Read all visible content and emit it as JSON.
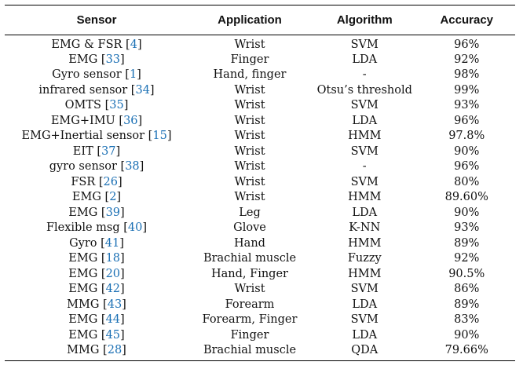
{
  "table": {
    "headers": [
      "Sensor",
      "Application",
      "Algorithm",
      "Accuracy"
    ],
    "rows": [
      {
        "sensor": "EMG & FSR",
        "ref": "4",
        "application": "Wrist",
        "algorithm": "SVM",
        "accuracy": "96%"
      },
      {
        "sensor": "EMG",
        "ref": "33",
        "application": "Finger",
        "algorithm": "LDA",
        "accuracy": "92%"
      },
      {
        "sensor": "Gyro sensor",
        "ref": "1",
        "application": "Hand, finger",
        "algorithm": "-",
        "accuracy": "98%"
      },
      {
        "sensor": "infrared sensor",
        "ref": "34",
        "application": "Wrist",
        "algorithm": "Otsu’s threshold",
        "accuracy": "99%"
      },
      {
        "sensor": "OMTS",
        "ref": "35",
        "application": "Wrist",
        "algorithm": "SVM",
        "accuracy": "93%"
      },
      {
        "sensor": "EMG+IMU",
        "ref": "36",
        "application": "Wrist",
        "algorithm": "LDA",
        "accuracy": "96%"
      },
      {
        "sensor": "EMG+Inertial sensor",
        "ref": "15",
        "application": "Wrist",
        "algorithm": "HMM",
        "accuracy": "97.8%"
      },
      {
        "sensor": "EIT",
        "ref": "37",
        "application": "Wrist",
        "algorithm": "SVM",
        "accuracy": "90%"
      },
      {
        "sensor": "gyro sensor",
        "ref": "38",
        "application": "Wrist",
        "algorithm": "-",
        "accuracy": "96%"
      },
      {
        "sensor": "FSR",
        "ref": "26",
        "application": "Wrist",
        "algorithm": "SVM",
        "accuracy": "80%"
      },
      {
        "sensor": "EMG",
        "ref": "2",
        "application": "Wrist",
        "algorithm": "HMM",
        "accuracy": "89.60%"
      },
      {
        "sensor": "EMG",
        "ref": "39",
        "application": "Leg",
        "algorithm": "LDA",
        "accuracy": "90%"
      },
      {
        "sensor": "Flexible msg",
        "ref": "40",
        "application": "Glove",
        "algorithm": "K-NN",
        "accuracy": "93%"
      },
      {
        "sensor": "Gyro",
        "ref": "41",
        "application": "Hand",
        "algorithm": "HMM",
        "accuracy": "89%"
      },
      {
        "sensor": "EMG",
        "ref": "18",
        "application": "Brachial muscle",
        "algorithm": "Fuzzy",
        "accuracy": "92%"
      },
      {
        "sensor": "EMG",
        "ref": "20",
        "application": "Hand, Finger",
        "algorithm": "HMM",
        "accuracy": "90.5%"
      },
      {
        "sensor": "EMG",
        "ref": "42",
        "application": "Wrist",
        "algorithm": "SVM",
        "accuracy": "86%"
      },
      {
        "sensor": "MMG",
        "ref": "43",
        "application": "Forearm",
        "algorithm": "LDA",
        "accuracy": "89%"
      },
      {
        "sensor": "EMG",
        "ref": "44",
        "application": "Forearm, Finger",
        "algorithm": "SVM",
        "accuracy": "83%"
      },
      {
        "sensor": "EMG",
        "ref": "45",
        "application": "Finger",
        "algorithm": "LDA",
        "accuracy": "90%"
      },
      {
        "sensor": "MMG",
        "ref": "28",
        "application": "Brachial muscle",
        "algorithm": "QDA",
        "accuracy": "79.66%"
      }
    ]
  }
}
